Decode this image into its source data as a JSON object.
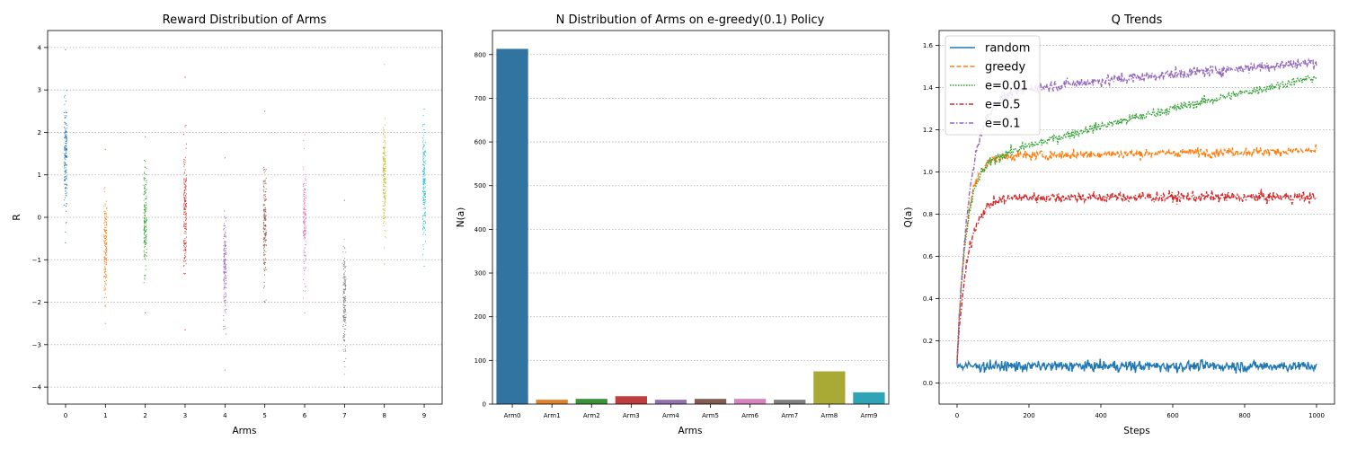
{
  "chart_data": [
    {
      "type": "scatter",
      "title": "Reward Distribution of Arms",
      "xlabel": "Arms",
      "ylabel": "R",
      "xlim": [
        -0.45,
        9.45
      ],
      "ylim": [
        -4.4,
        4.4
      ],
      "grid": "y-dotted",
      "xticks": [
        "0",
        "1",
        "2",
        "3",
        "4",
        "5",
        "6",
        "7",
        "8",
        "9"
      ],
      "yticks": [
        "4",
        "3",
        "2",
        "1",
        "0",
        "−1",
        "−2",
        "−3",
        "−4"
      ],
      "ytick_values": [
        4,
        3,
        2,
        1,
        0,
        -1,
        -2,
        -3,
        -4
      ],
      "series": [
        {
          "arm": 0,
          "mean": 1.5,
          "spread": 0.9,
          "min": -0.6,
          "max": 3.95
        },
        {
          "arm": 1,
          "mean": -0.7,
          "spread": 0.9,
          "min": -2.5,
          "max": 1.6
        },
        {
          "arm": 2,
          "mean": -0.2,
          "spread": 0.9,
          "min": -2.25,
          "max": 1.9
        },
        {
          "arm": 3,
          "mean": 0.2,
          "spread": 1.0,
          "min": -2.65,
          "max": 3.3
        },
        {
          "arm": 4,
          "mean": -1.2,
          "spread": 0.9,
          "min": -3.6,
          "max": 1.4
        },
        {
          "arm": 5,
          "mean": -0.1,
          "spread": 0.9,
          "min": -2.0,
          "max": 2.5
        },
        {
          "arm": 6,
          "mean": -0.2,
          "spread": 0.9,
          "min": -2.25,
          "max": 1.95
        },
        {
          "arm": 7,
          "mean": -2.0,
          "spread": 0.9,
          "min": -4.0,
          "max": 0.4
        },
        {
          "arm": 8,
          "mean": 1.0,
          "spread": 0.9,
          "min": -1.1,
          "max": 3.6
        },
        {
          "arm": 9,
          "mean": 0.8,
          "spread": 0.9,
          "min": -1.15,
          "max": 2.55
        }
      ]
    },
    {
      "type": "bar",
      "title": "N Distribution of Arms on e-greedy(0.1) Policy",
      "xlabel": "Arms",
      "ylabel": "N(a)",
      "ylim": [
        0,
        855
      ],
      "grid": "y-dotted",
      "categories": [
        "Arm0",
        "Arm1",
        "Arm2",
        "Arm3",
        "Arm4",
        "Arm5",
        "Arm6",
        "Arm7",
        "Arm8",
        "Arm9"
      ],
      "values": [
        813,
        10,
        12,
        18,
        10,
        12,
        12,
        10,
        75,
        27
      ],
      "yticks": [
        "0",
        "100",
        "200",
        "300",
        "400",
        "500",
        "600",
        "700",
        "800"
      ],
      "ytick_values": [
        0,
        100,
        200,
        300,
        400,
        500,
        600,
        700,
        800
      ]
    },
    {
      "type": "line",
      "title": "Q Trends",
      "xlabel": "Steps",
      "ylabel": "Q(a)",
      "xlim": [
        -50,
        1050
      ],
      "ylim": [
        -0.1,
        1.67
      ],
      "grid": "y-dotted",
      "legend": "top-left",
      "xticks": [
        "0",
        "200",
        "400",
        "600",
        "800",
        "1000"
      ],
      "xtick_values": [
        0,
        200,
        400,
        600,
        800,
        1000
      ],
      "yticks": [
        "0.0",
        "0.2",
        "0.4",
        "0.6",
        "0.8",
        "1.0",
        "1.2",
        "1.4",
        "1.6"
      ],
      "ytick_values": [
        0,
        0.2,
        0.4,
        0.6,
        0.8,
        1.0,
        1.2,
        1.4,
        1.6
      ],
      "series": [
        {
          "name": "random",
          "style": "solid",
          "start": 0.08,
          "plateau": 0.08,
          "rise_rate": 50,
          "late_gain": 0,
          "noise": 0.03
        },
        {
          "name": "greedy",
          "style": "dashed",
          "start": 0.1,
          "plateau": 1.07,
          "rise_rate": 25,
          "late_gain": 0.03,
          "noise": 0.025
        },
        {
          "name": "e=0.01",
          "style": "dotted",
          "start": 0.1,
          "plateau": 1.0,
          "rise_rate": 25,
          "late_gain": 0.45,
          "noise": 0.025
        },
        {
          "name": "e=0.5",
          "style": "dashdot",
          "start": 0.1,
          "plateau": 0.88,
          "rise_rate": 30,
          "late_gain": 0.0,
          "noise": 0.03
        },
        {
          "name": "e=0.1",
          "style": "dashdot",
          "start": 0.1,
          "plateau": 1.35,
          "rise_rate": 35,
          "late_gain": 0.17,
          "noise": 0.03
        }
      ]
    }
  ],
  "colors": [
    "#1f77b4",
    "#ff7f0e",
    "#2ca02c",
    "#d62728",
    "#9467bd",
    "#8c564b",
    "#e377c2",
    "#7f7f7f",
    "#bcbd22",
    "#17becf"
  ],
  "bar_colors": [
    "#3274a1",
    "#e1812c",
    "#3a923a",
    "#c03d3e",
    "#9372b2",
    "#845b53",
    "#d684bd",
    "#7f7f7f",
    "#a9aa35",
    "#2ea4b6"
  ]
}
